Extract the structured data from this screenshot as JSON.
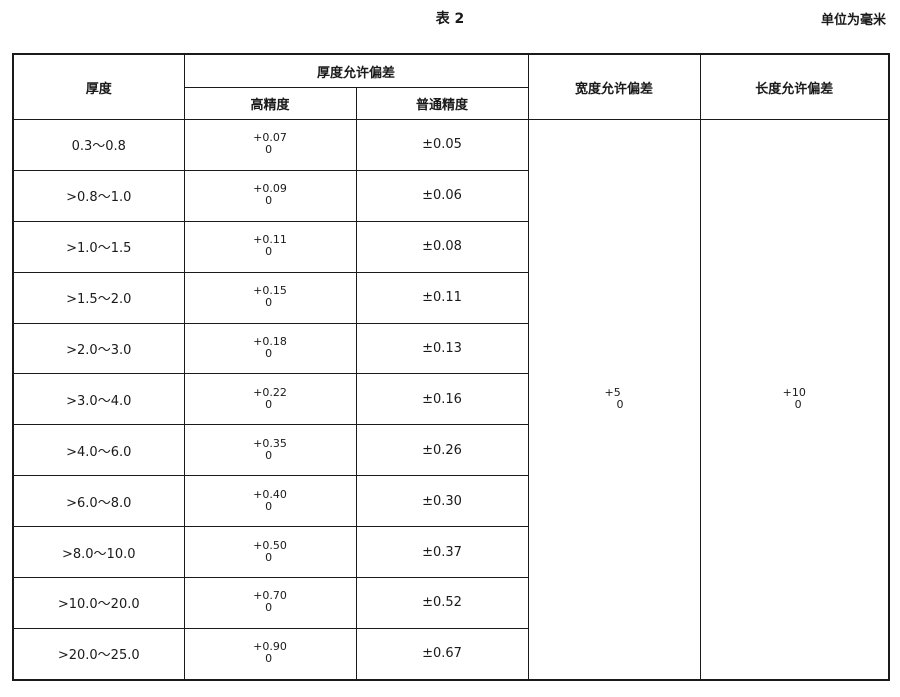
{
  "caption": "表 2",
  "unit": "单位为毫米",
  "headers": {
    "thickness": "厚度",
    "thickness_tolerance": "厚度允许偏差",
    "high_precision": "高精度",
    "normal_precision": "普通精度",
    "width_tolerance": "宽度允许偏差",
    "length_tolerance": "长度允许偏差"
  },
  "width_tolerance": {
    "upper": "+5",
    "lower": "0"
  },
  "length_tolerance": {
    "upper": "+10",
    "lower": "0"
  },
  "rows": [
    {
      "thickness": "0.3～0.8",
      "high_upper": "+0.07",
      "high_lower": "0",
      "normal": "±0.05"
    },
    {
      "thickness": ">0.8～1.0",
      "high_upper": "+0.09",
      "high_lower": "0",
      "normal": "±0.06"
    },
    {
      "thickness": ">1.0～1.5",
      "high_upper": "+0.11",
      "high_lower": "0",
      "normal": "±0.08"
    },
    {
      "thickness": ">1.5～2.0",
      "high_upper": "+0.15",
      "high_lower": "0",
      "normal": "±0.11"
    },
    {
      "thickness": ">2.0～3.0",
      "high_upper": "+0.18",
      "high_lower": "0",
      "normal": "±0.13"
    },
    {
      "thickness": ">3.0～4.0",
      "high_upper": "+0.22",
      "high_lower": "0",
      "normal": "±0.16"
    },
    {
      "thickness": ">4.0～6.0",
      "high_upper": "+0.35",
      "high_lower": "0",
      "normal": "±0.26"
    },
    {
      "thickness": ">6.0～8.0",
      "high_upper": "+0.40",
      "high_lower": "0",
      "normal": "±0.30"
    },
    {
      "thickness": ">8.0～10.0",
      "high_upper": "+0.50",
      "high_lower": "0",
      "normal": "±0.37"
    },
    {
      "thickness": ">10.0～20.0",
      "high_upper": "+0.70",
      "high_lower": "0",
      "normal": "±0.52"
    },
    {
      "thickness": ">20.0～25.0",
      "high_upper": "+0.90",
      "high_lower": "0",
      "normal": "±0.67"
    }
  ]
}
